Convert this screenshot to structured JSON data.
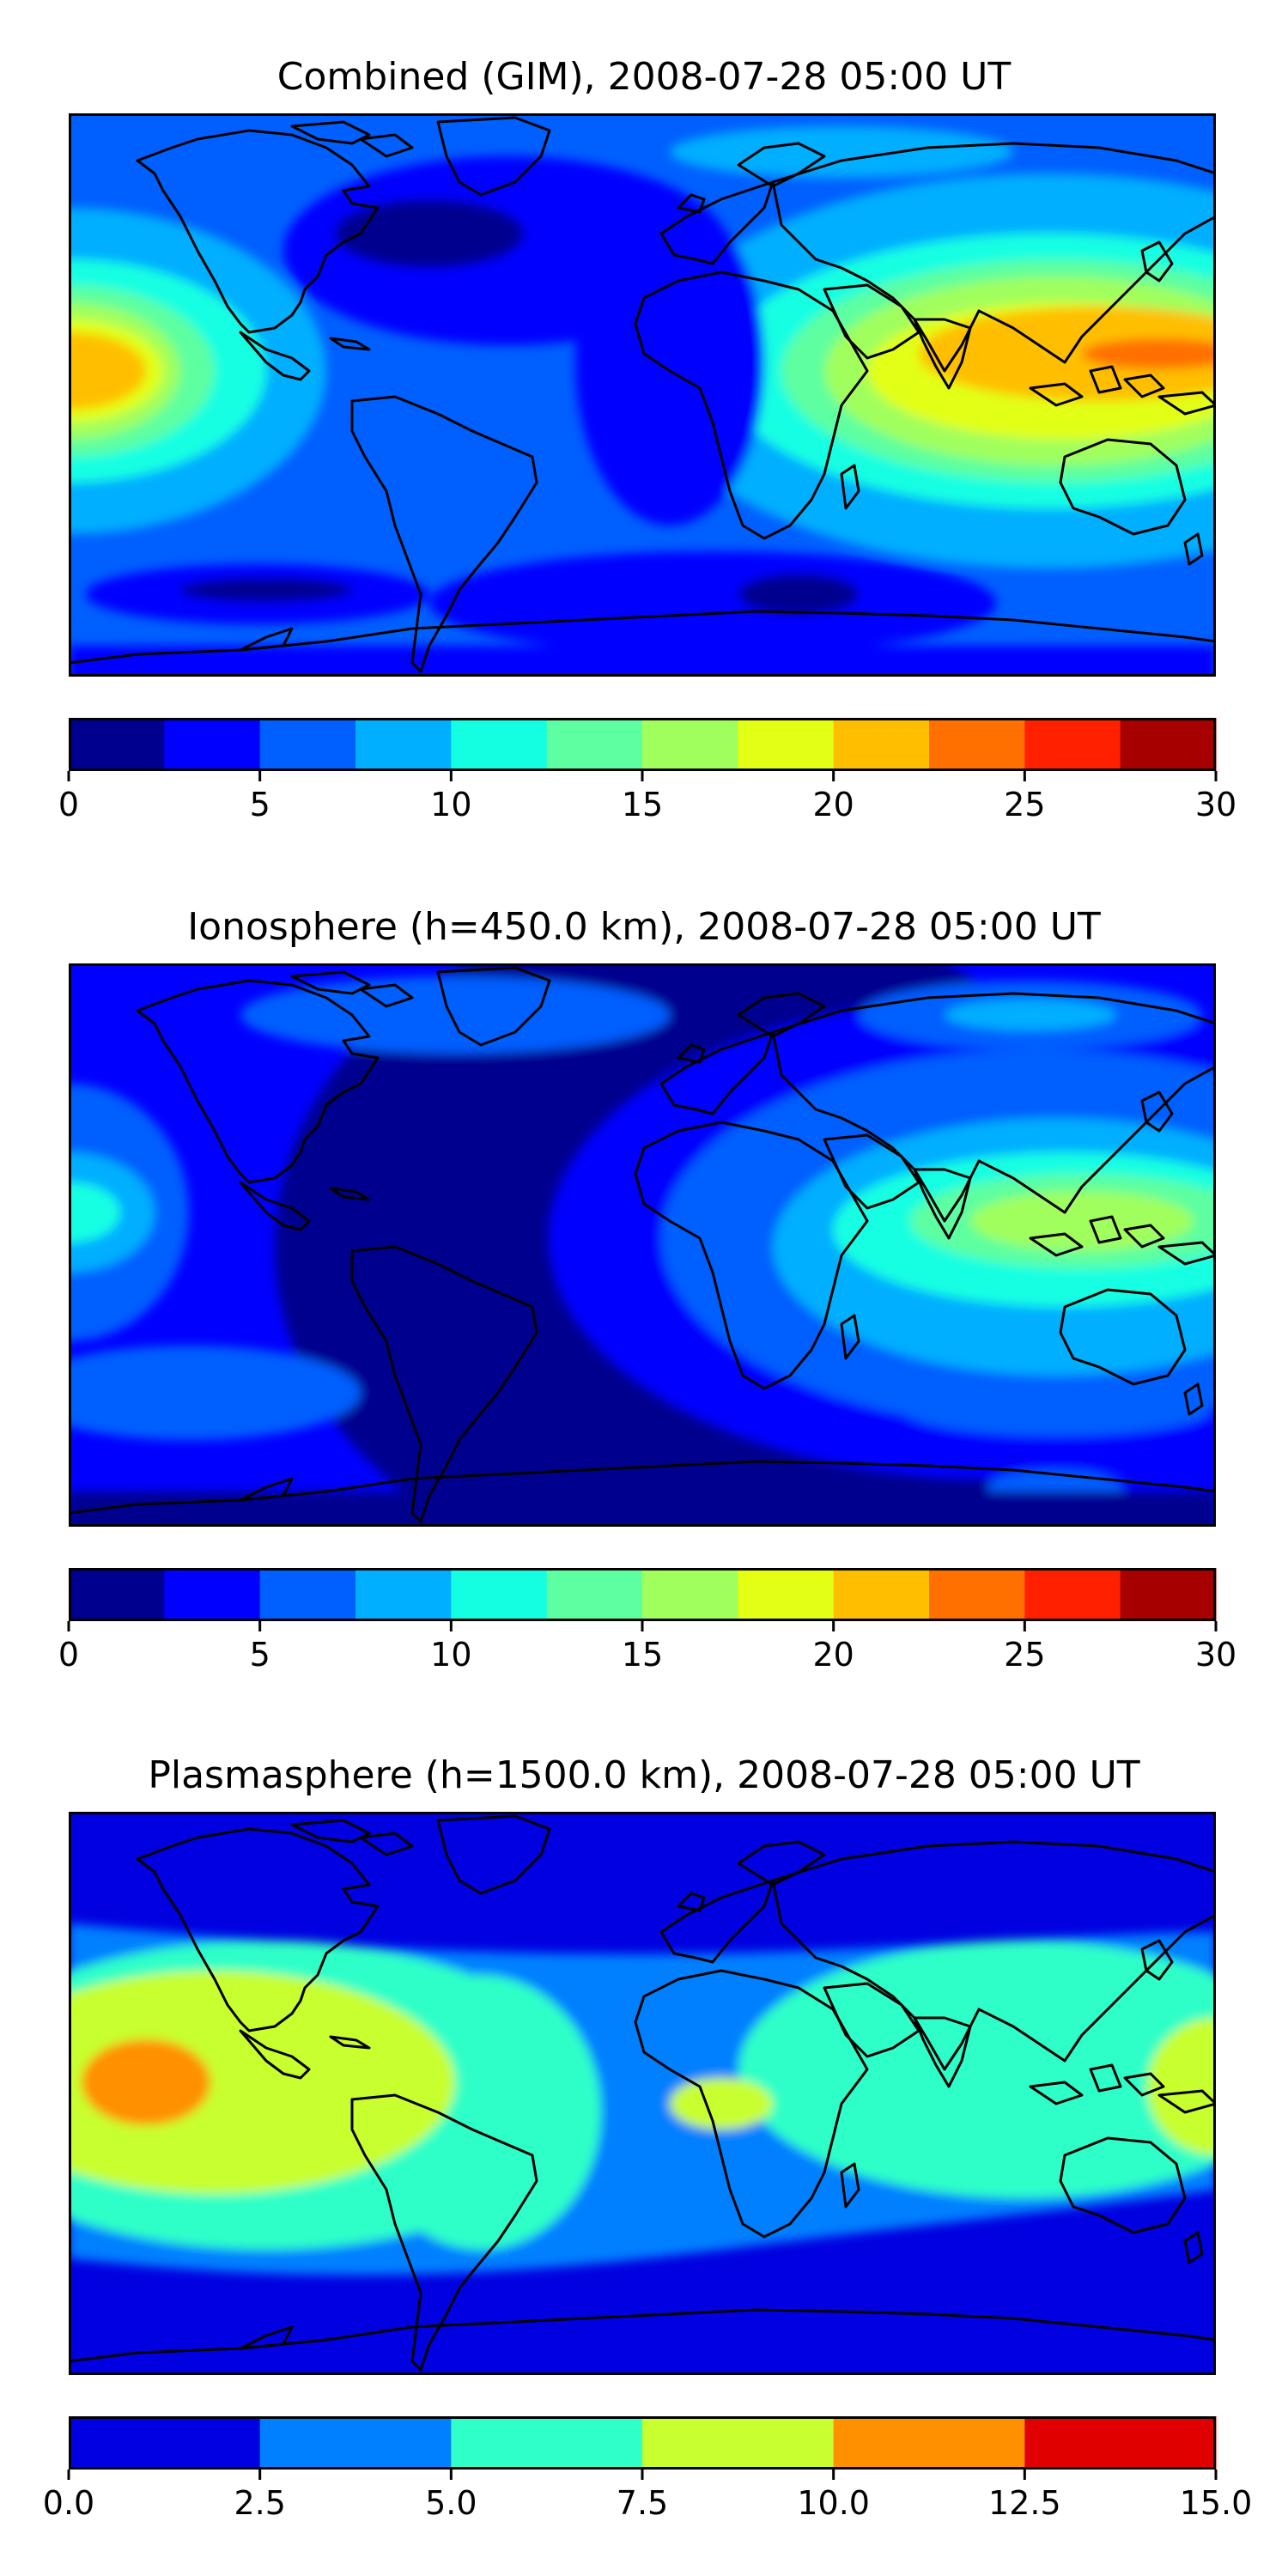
{
  "panels": [
    {
      "title": "Combined (GIM), 2008-07-28 05:00 UT",
      "colorbar": {
        "ticks": [
          "0",
          "5",
          "10",
          "15",
          "20",
          "25",
          "30"
        ],
        "colors": [
          "#00008f",
          "#0000ff",
          "#005fff",
          "#00afff",
          "#14ffe2",
          "#5dffa0",
          "#a0ff5d",
          "#e2ff14",
          "#ffbf00",
          "#ff7000",
          "#ff2000",
          "#a60000"
        ],
        "range": [
          0,
          30
        ]
      }
    },
    {
      "title": "Ionosphere  (h=450.0 km), 2008-07-28 05:00 UT",
      "colorbar": {
        "ticks": [
          "0",
          "5",
          "10",
          "15",
          "20",
          "25",
          "30"
        ],
        "colors": [
          "#00008f",
          "#0000ff",
          "#005fff",
          "#00afff",
          "#14ffe2",
          "#5dffa0",
          "#a0ff5d",
          "#e2ff14",
          "#ffbf00",
          "#ff7000",
          "#ff2000",
          "#a60000"
        ],
        "range": [
          0,
          30
        ]
      }
    },
    {
      "title": "Plasmasphere (h=1500.0 km), 2008-07-28 05:00 UT",
      "colorbar": {
        "ticks": [
          "0.0",
          "2.5",
          "5.0",
          "7.5",
          "10.0",
          "12.5",
          "15.0"
        ],
        "colors": [
          "#0000e0",
          "#0080ff",
          "#2fffc8",
          "#c8ff2f",
          "#ff9000",
          "#e00000"
        ],
        "range": [
          0,
          15
        ]
      }
    }
  ],
  "map": {
    "projection": "equirectangular",
    "lon_range": [
      -180,
      180
    ],
    "lat_range": [
      -90,
      90
    ],
    "coastline_color": "#000000"
  }
}
